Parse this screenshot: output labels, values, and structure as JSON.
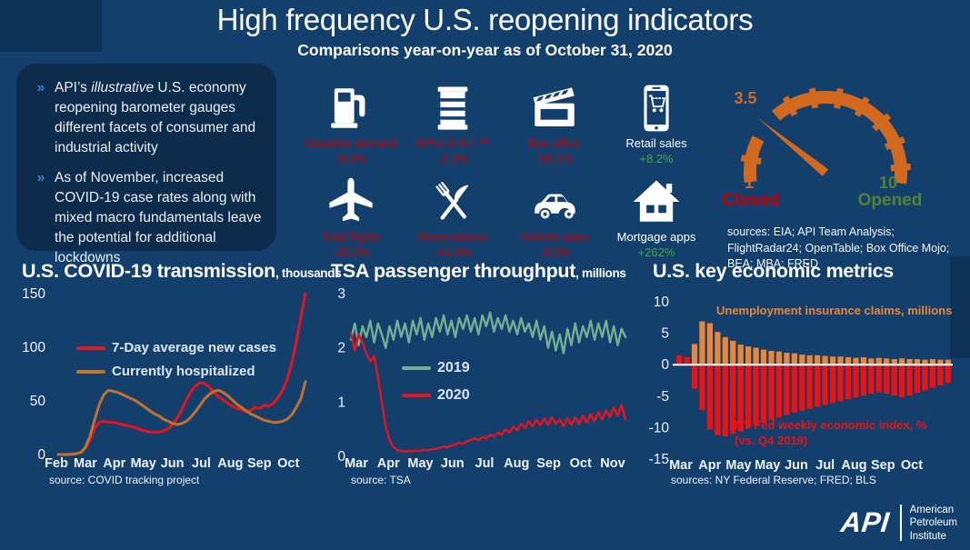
{
  "header": {
    "title": "High frequency U.S. reopening indicators",
    "subtitle": "Comparisons year-on-year as of October 31, 2020"
  },
  "panel": {
    "marker": "»",
    "bullet1_pre": "API’s ",
    "bullet1_italic": "illustrative",
    "bullet1_post": " U.S. economy reopening barometer gauges different facets of consumer and industrial activity",
    "bullet2": "As of November, increased COVID-19 case rates along with mixed macro fundamentals leave the potential for additional lockdowns"
  },
  "indicators": [
    {
      "label": "Gasoline demand",
      "value": "-8.9%",
      "icon": "gas-pump",
      "label_style": "negative",
      "value_style": "negative"
    },
    {
      "label": "API’s D-E-I ™",
      "value": "-2.3%",
      "icon": "oil-barrel",
      "label_style": "negative",
      "value_style": "negative"
    },
    {
      "label": "Box office",
      "value": "-96.1%",
      "icon": "clapperboard",
      "label_style": "negative",
      "value_style": "negative"
    },
    {
      "label": "Retail sales",
      "value": "+8.2%",
      "icon": "retail-phone",
      "label_style": "neutral",
      "value_style": "positive"
    },
    {
      "label": "Total flights",
      "value": "-25.2%",
      "icon": "airplane",
      "label_style": "negative",
      "value_style": "negative"
    },
    {
      "label": "Reservations",
      "value": "-41.0%",
      "icon": "utensils",
      "label_style": "negative",
      "value_style": "negative"
    },
    {
      "label": "Vehicle sales",
      "value": "-3.5%",
      "icon": "car",
      "label_style": "negative",
      "value_style": "negative"
    },
    {
      "label": "Mortgage apps",
      "value": "+262%",
      "icon": "house",
      "label_style": "neutral",
      "value_style": "positive"
    }
  ],
  "gauge": {
    "value": "3.5",
    "min": "1",
    "min_label": "Closed",
    "max": "10",
    "max_label": "Opened",
    "sources": "sources: EIA; API Team Analysis; FlightRadar24; OpenTable; Box Office Mojo; BEA; MBA; FRED"
  },
  "chart_data": [
    {
      "type": "line",
      "title": "U.S. COVID-19 transmission",
      "unit_suffix": ", thousands",
      "ylim": [
        0,
        150
      ],
      "yticks": [
        0,
        50,
        100,
        150
      ],
      "xticks": [
        "Feb",
        "Mar",
        "Apr",
        "May",
        "Jun",
        "Jul",
        "Aug",
        "Sep",
        "Oct"
      ],
      "grid": false,
      "legend_position": "inside-upper-left",
      "source": "source: COVID tracking project",
      "series": [
        {
          "name": "7-Day average new cases",
          "color_key": "chart_red",
          "values": [
            0,
            0,
            0.3,
            0.5,
            1,
            2,
            6,
            14,
            25,
            30,
            31,
            30,
            30,
            29,
            28,
            27,
            26,
            25,
            23,
            22,
            21,
            21,
            21,
            22,
            24,
            28,
            34,
            42,
            51,
            59,
            64,
            67,
            66,
            63,
            58,
            54,
            51,
            48,
            45,
            43,
            42,
            40,
            41,
            44,
            43,
            46,
            45,
            48,
            53,
            60,
            70,
            85,
            105,
            128,
            150
          ]
        },
        {
          "name": "Currently hospitalized",
          "color_key": "chart_orange",
          "values": [
            0,
            0,
            0,
            0.3,
            0.8,
            2,
            7,
            18,
            33,
            47,
            56,
            60,
            59,
            58,
            56,
            54,
            52,
            50,
            47,
            44,
            41,
            38,
            36,
            33,
            31,
            29,
            28,
            29,
            31,
            35,
            40,
            46,
            52,
            56,
            59,
            60,
            58,
            55,
            51,
            47,
            44,
            41,
            38,
            36,
            34,
            32,
            31,
            30,
            30,
            31,
            33,
            37,
            44,
            52,
            68
          ]
        }
      ]
    },
    {
      "type": "line",
      "title": "TSA passenger throughput",
      "unit_suffix": ", millions",
      "ylim": [
        0,
        3
      ],
      "yticks": [
        0,
        1,
        2,
        3
      ],
      "xticks": [
        "Mar",
        "Apr",
        "May",
        "Jun",
        "Jul",
        "Aug",
        "Sep",
        "Oct",
        "Nov"
      ],
      "grid": false,
      "legend_position": "inside-middle-left",
      "source": "source: TSA",
      "series": [
        {
          "name": "2019",
          "color_key": "green_2019",
          "values": [
            2.15,
            2.45,
            2.05,
            2.4,
            2.2,
            2.5,
            2.1,
            2.45,
            2.25,
            2.0,
            2.4,
            2.15,
            2.5,
            2.2,
            2.45,
            2.1,
            2.5,
            2.25,
            2.55,
            2.15,
            2.45,
            2.2,
            2.55,
            2.3,
            2.6,
            2.25,
            2.5,
            2.2,
            2.55,
            2.35,
            2.6,
            2.3,
            2.55,
            2.25,
            2.6,
            2.4,
            2.65,
            2.3,
            2.55,
            2.35,
            2.6,
            2.3,
            2.5,
            2.25,
            2.55,
            2.3,
            2.45,
            2.2,
            2.5,
            2.15,
            2.4,
            2.0,
            2.3,
            1.95,
            2.25,
            1.9,
            2.35,
            2.05,
            2.45,
            2.1,
            2.4,
            2.2,
            2.5,
            2.15,
            2.45,
            2.2,
            2.5,
            2.1,
            2.4,
            2.05,
            2.35,
            2.2
          ]
        },
        {
          "name": "2020",
          "color_key": "chart_red",
          "values": [
            2.28,
            1.95,
            2.25,
            2.1,
            1.9,
            1.75,
            1.85,
            1.45,
            1.0,
            0.55,
            0.3,
            0.17,
            0.12,
            0.1,
            0.09,
            0.1,
            0.09,
            0.11,
            0.1,
            0.12,
            0.11,
            0.13,
            0.14,
            0.16,
            0.18,
            0.17,
            0.2,
            0.22,
            0.25,
            0.23,
            0.28,
            0.3,
            0.33,
            0.3,
            0.36,
            0.33,
            0.4,
            0.36,
            0.44,
            0.4,
            0.5,
            0.44,
            0.55,
            0.48,
            0.6,
            0.52,
            0.65,
            0.55,
            0.68,
            0.57,
            0.7,
            0.58,
            0.72,
            0.6,
            0.68,
            0.56,
            0.7,
            0.58,
            0.72,
            0.6,
            0.75,
            0.62,
            0.78,
            0.65,
            0.82,
            0.68,
            0.85,
            0.72,
            0.9,
            0.75,
            0.95,
            0.68
          ]
        }
      ]
    },
    {
      "type": "bar",
      "title": "U.S. key economic metrics",
      "unit_suffix": "",
      "ylim": [
        -15,
        10
      ],
      "yticks": [
        10,
        5,
        0,
        -5,
        -10,
        -15
      ],
      "xticks": [
        "Mar",
        "Apr",
        "May",
        "May",
        "Jun",
        "Jul",
        "Aug",
        "Sep",
        "Oct"
      ],
      "grid": false,
      "zero_line": true,
      "source": "sources: NY Federal Reserve; FRED; BLS",
      "annotation_orange": "Unemployment insurance claims, millions",
      "annotation_red_line1": "NY Fed weekly economic index, %",
      "annotation_red_line2": "(vs. Q4 2019)",
      "series": [
        {
          "name": "Unemployment insurance claims, millions",
          "color_key": "bar_orange",
          "values": [
            0.2,
            0.25,
            3.3,
            6.9,
            6.6,
            5.2,
            4.4,
            3.8,
            3.2,
            2.9,
            2.7,
            2.4,
            2.2,
            2.1,
            1.9,
            1.8,
            1.6,
            1.5,
            1.5,
            1.4,
            1.3,
            1.3,
            1.2,
            1.1,
            1.2,
            1.0,
            1.1,
            1.0,
            0.9,
            1.0,
            0.9,
            0.9,
            0.8,
            0.9,
            0.8,
            0.8
          ]
        },
        {
          "name": "NY Fed weekly economic index, % (vs. Q4 2019)",
          "color_key": "bar_red",
          "values": [
            1.5,
            1.2,
            -3.8,
            -7.2,
            -10.3,
            -11.2,
            -11.4,
            -11.0,
            -10.6,
            -10.1,
            -9.7,
            -9.2,
            -8.8,
            -8.4,
            -8.0,
            -7.6,
            -7.3,
            -7.0,
            -6.7,
            -6.4,
            -6.1,
            -5.8,
            -5.5,
            -5.2,
            -4.9,
            -4.6,
            -4.4,
            -4.6,
            -4.9,
            -5.2,
            -4.9,
            -4.5,
            -4.1,
            -3.7,
            -3.3,
            -2.9
          ]
        }
      ]
    }
  ],
  "logo": {
    "mark": "API",
    "org_line1": "American",
    "org_line2": "Petroleum",
    "org_line3": "Institute"
  },
  "colors": {
    "background": "#133f6d",
    "panel": "#0d2b4b",
    "chart_red": "#e8131d",
    "chart_orange": "#c0722f",
    "bar_orange": "#e8873a",
    "bar_red": "#ee1111",
    "green_2019": "#74af94",
    "negative_red": "#c00000",
    "positive_green": "#4aa546",
    "neutral_white": "#ffffff",
    "gauge_orange": "#d2691e",
    "closed_red": "#c00000",
    "opened_green": "#538135",
    "axis_text": "#eef3fa",
    "legend_text": "#dce6f2",
    "zero_line": "#ffffff"
  }
}
